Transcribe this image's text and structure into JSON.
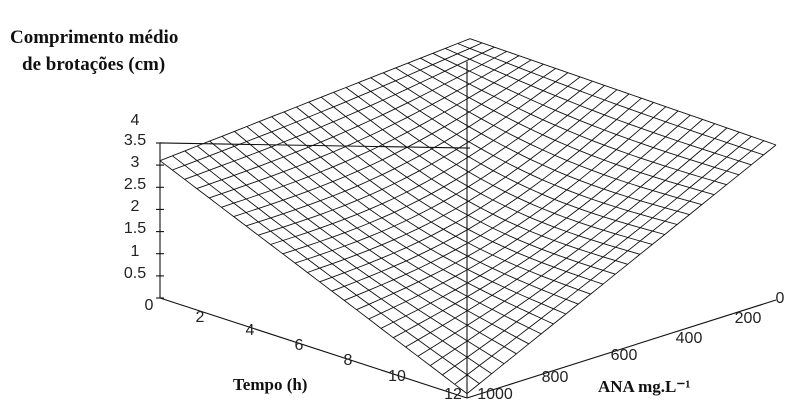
{
  "chart_data": {
    "type": "surface3d",
    "zlabel_line1": "Comprimento médio",
    "zlabel_line2": "de brotações (cm)",
    "xlabel": "Tempo (h)",
    "ylabel": "ANA mg.L⁻¹",
    "x_ticks": [
      "0",
      "2",
      "4",
      "6",
      "8",
      "10",
      "12"
    ],
    "y_ticks": [
      "1000",
      "800",
      "600",
      "400",
      "200",
      "0"
    ],
    "z_ticks": [
      "0.5",
      "1",
      "1.5",
      "2",
      "2.5",
      "3",
      "3.5",
      "4"
    ],
    "x_range": [
      0,
      12
    ],
    "y_range": [
      0,
      1000
    ],
    "z_range": [
      0.5,
      4
    ],
    "grid_n": 25,
    "corner_values": {
      "tempo_0_ana_1000": 3.6,
      "tempo_12_ana_1000": 0.6,
      "tempo_0_ana_0": 4.3,
      "tempo_12_ana_0": 4.0
    },
    "line_color": "#111111"
  }
}
